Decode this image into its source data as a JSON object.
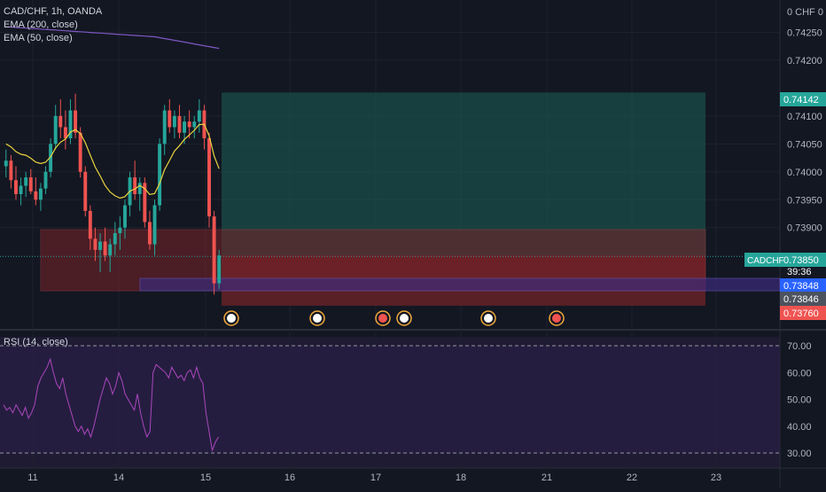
{
  "header": {
    "symbol_line": "CAD/CHF, 1h, OANDA",
    "indicator_1": "EMA (200, close)",
    "indicator_2": "EMA (50, close)",
    "axis_top_label": "0 CHF 0"
  },
  "rsi": {
    "label": "RSI (14, close)",
    "levels": {
      "upper": 70,
      "lower": 30
    },
    "ticks": [
      "70.00",
      "60.00",
      "50.00",
      "40.00",
      "30.00"
    ],
    "values": [
      48,
      46,
      47,
      45,
      48,
      46,
      44,
      47,
      43,
      45,
      48,
      55,
      58,
      60,
      62,
      65,
      60,
      56,
      54,
      58,
      52,
      48,
      44,
      40,
      38,
      40,
      37,
      39,
      36,
      40,
      45,
      50,
      54,
      58,
      56,
      52,
      55,
      60,
      57,
      52,
      50,
      48,
      46,
      52,
      45,
      40,
      36,
      38,
      60,
      63,
      62,
      61,
      60,
      58,
      62,
      60,
      58,
      59,
      57,
      60,
      61,
      58,
      62,
      58,
      56,
      45,
      38,
      31,
      34,
      36
    ]
  },
  "labels": {
    "symbol_tag": "CADCHF",
    "countdown": "39:36"
  },
  "price_axis": {
    "ticks": [
      "0.74250",
      "0.74200",
      "0.74100",
      "0.74050",
      "0.74000",
      "0.73950",
      "0.73900"
    ],
    "badges": [
      {
        "text": "0.74142",
        "color": "#26a69a"
      },
      {
        "text": "0.73850",
        "color": "#26a69a"
      },
      {
        "text": "0.73848",
        "color": "#2962ff"
      },
      {
        "text": "0.73846",
        "color": "#4c525e"
      },
      {
        "text": "0.73760",
        "color": "#ef5350"
      }
    ]
  },
  "time_axis": {
    "ticks": [
      "11",
      "14",
      "15",
      "16",
      "17",
      "18",
      "21",
      "22",
      "23"
    ]
  },
  "colors": {
    "background": "#131722",
    "up": "#26a69a",
    "down": "#ef5350",
    "ema200": "#7e57c2",
    "ema50": "#e8d33f",
    "rsi_line": "#ab47bc"
  },
  "chart_data": {
    "type": "candlestick",
    "title": "CAD/CHF, 1h, OANDA",
    "ylim": [
      0.7372,
      0.743
    ],
    "position_tool": {
      "target": 0.74142,
      "entry": 0.7385,
      "stop": 0.7376
    },
    "ohlc": [
      [
        0.7401,
        0.7404,
        0.7399,
        0.7402
      ],
      [
        0.7402,
        0.7403,
        0.7397,
        0.73985
      ],
      [
        0.73985,
        0.7401,
        0.7395,
        0.7396
      ],
      [
        0.7396,
        0.7399,
        0.7394,
        0.73975
      ],
      [
        0.73975,
        0.74,
        0.73955,
        0.7399
      ],
      [
        0.7399,
        0.74005,
        0.7396,
        0.73965
      ],
      [
        0.73965,
        0.7399,
        0.7394,
        0.7395
      ],
      [
        0.7395,
        0.7398,
        0.7393,
        0.7397
      ],
      [
        0.7397,
        0.7401,
        0.7396,
        0.74
      ],
      [
        0.74,
        0.7406,
        0.7399,
        0.7405
      ],
      [
        0.7405,
        0.7412,
        0.7404,
        0.741
      ],
      [
        0.741,
        0.7413,
        0.7406,
        0.7408
      ],
      [
        0.7408,
        0.7411,
        0.7404,
        0.7406
      ],
      [
        0.7406,
        0.7413,
        0.7405,
        0.7411
      ],
      [
        0.7411,
        0.7414,
        0.7406,
        0.7407
      ],
      [
        0.7407,
        0.7408,
        0.7399,
        0.74
      ],
      [
        0.74,
        0.7401,
        0.7392,
        0.7393
      ],
      [
        0.7393,
        0.7394,
        0.7386,
        0.7388
      ],
      [
        0.7388,
        0.739,
        0.7384,
        0.7386
      ],
      [
        0.7386,
        0.7389,
        0.7382,
        0.73875
      ],
      [
        0.73875,
        0.739,
        0.7384,
        0.7385
      ],
      [
        0.7385,
        0.7388,
        0.7382,
        0.7387
      ],
      [
        0.7387,
        0.7391,
        0.7385,
        0.7389
      ],
      [
        0.7389,
        0.7392,
        0.7386,
        0.739
      ],
      [
        0.739,
        0.7395,
        0.7388,
        0.7394
      ],
      [
        0.7394,
        0.74,
        0.7392,
        0.7399
      ],
      [
        0.7399,
        0.7402,
        0.7395,
        0.7396
      ],
      [
        0.7396,
        0.7399,
        0.7393,
        0.7398
      ],
      [
        0.7398,
        0.7399,
        0.739,
        0.7391
      ],
      [
        0.7391,
        0.7393,
        0.7386,
        0.7387
      ],
      [
        0.7387,
        0.7395,
        0.7385,
        0.7394
      ],
      [
        0.7394,
        0.7406,
        0.7393,
        0.7405
      ],
      [
        0.7405,
        0.7412,
        0.7403,
        0.7411
      ],
      [
        0.7411,
        0.7413,
        0.7407,
        0.7408
      ],
      [
        0.7408,
        0.7411,
        0.7406,
        0.741
      ],
      [
        0.741,
        0.7412,
        0.7406,
        0.7407
      ],
      [
        0.7407,
        0.741,
        0.7405,
        0.7409
      ],
      [
        0.7409,
        0.7411,
        0.7406,
        0.7408
      ],
      [
        0.7408,
        0.741,
        0.7406,
        0.7409
      ],
      [
        0.7409,
        0.7413,
        0.7407,
        0.7411
      ],
      [
        0.7411,
        0.7412,
        0.7404,
        0.7406
      ],
      [
        0.7406,
        0.7407,
        0.739,
        0.7392
      ],
      [
        0.7392,
        0.7393,
        0.7378,
        0.738
      ],
      [
        0.738,
        0.7386,
        0.7379,
        0.7385
      ]
    ]
  }
}
